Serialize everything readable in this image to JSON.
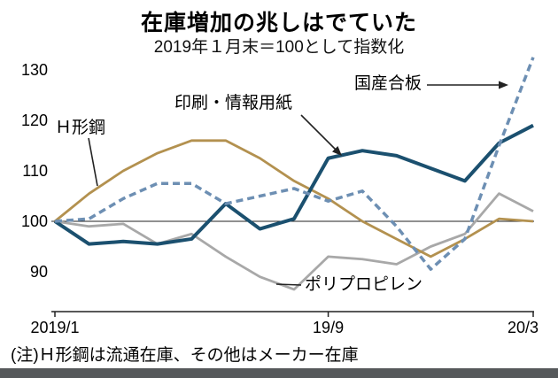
{
  "chart_data": {
    "type": "line",
    "title": "在庫増加の兆しはでていた",
    "subtitle": "2019年１月末＝100として指数化",
    "note": "(注)Ｈ形鋼は流通在庫、その他はメーカー在庫",
    "x": [
      "2019/1",
      "2019/2",
      "2019/3",
      "2019/4",
      "2019/5",
      "2019/6",
      "2019/7",
      "2019/8",
      "2019/9",
      "2019/10",
      "2019/11",
      "2019/12",
      "2020/1",
      "2020/2",
      "2020/3"
    ],
    "x_tick_labels": [
      "2019/1",
      "19/9",
      "20/3"
    ],
    "x_tick_indices": [
      0,
      8,
      14
    ],
    "yticks": [
      90,
      100,
      110,
      120,
      130
    ],
    "ylim": [
      82,
      134
    ],
    "baseline": 100,
    "grid": false,
    "legend": "inline-annotations",
    "axis_color": "#222222",
    "series": [
      {
        "name": "Ｈ形鋼",
        "color": "#b3914f",
        "style": "solid",
        "values": [
          100,
          105.5,
          110,
          113.5,
          116,
          116,
          112.5,
          108,
          104.5,
          100,
          96.5,
          93,
          96.5,
          100.5,
          100
        ]
      },
      {
        "name": "印刷・情報用紙",
        "color": "#1b506f",
        "style": "solid",
        "values": [
          100,
          95.5,
          96,
          95.5,
          96.5,
          103.5,
          98.5,
          100.5,
          112.5,
          114,
          113,
          110.5,
          108,
          115.5,
          119
        ]
      },
      {
        "name": "国産合板",
        "color": "#6d8fb3",
        "style": "dashed",
        "values": [
          100,
          100.5,
          104.5,
          107.5,
          107.5,
          103.5,
          105,
          106.5,
          104,
          106,
          99,
          90.5,
          96.5,
          115,
          132.5
        ]
      },
      {
        "name": "ポリプロピレン",
        "color": "#a8a8a8",
        "style": "solid",
        "values": [
          100,
          99,
          99.5,
          95.5,
          97.5,
          93,
          89,
          86.5,
          93,
          92.5,
          91.5,
          95,
          97.5,
          105.5,
          102
        ]
      }
    ]
  }
}
